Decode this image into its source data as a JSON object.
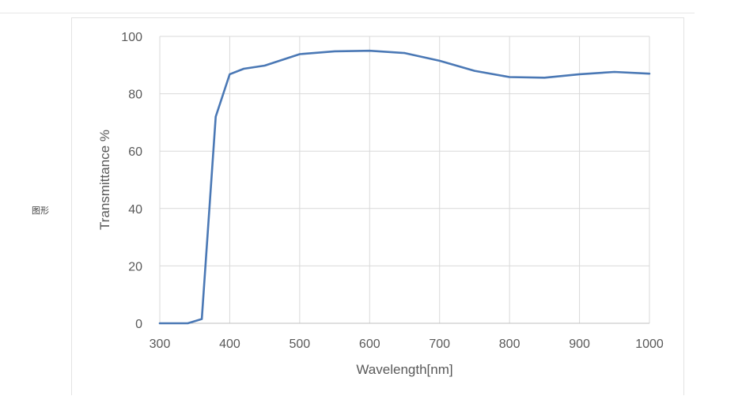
{
  "side_label": "图形",
  "chart_data": {
    "type": "line",
    "title": "",
    "xlabel": "Wavelength[nm]",
    "ylabel": "Transmittance %",
    "xlim": [
      300,
      1000
    ],
    "ylim": [
      0,
      100
    ],
    "x_ticks": [
      300,
      400,
      500,
      600,
      700,
      800,
      900,
      1000
    ],
    "y_ticks": [
      0,
      20,
      40,
      60,
      80,
      100
    ],
    "grid": true,
    "legend": "none",
    "series": [
      {
        "color": "#4a78b5",
        "points": [
          [
            300,
            0
          ],
          [
            340,
            0
          ],
          [
            360,
            1.5
          ],
          [
            380,
            72
          ],
          [
            400,
            86.8
          ],
          [
            420,
            88.7
          ],
          [
            450,
            89.8
          ],
          [
            500,
            93.8
          ],
          [
            550,
            94.8
          ],
          [
            600,
            95.0
          ],
          [
            650,
            94.2
          ],
          [
            700,
            91.5
          ],
          [
            750,
            88.0
          ],
          [
            800,
            85.8
          ],
          [
            850,
            85.6
          ],
          [
            900,
            86.8
          ],
          [
            950,
            87.6
          ],
          [
            1000,
            87.0
          ]
        ]
      }
    ]
  }
}
